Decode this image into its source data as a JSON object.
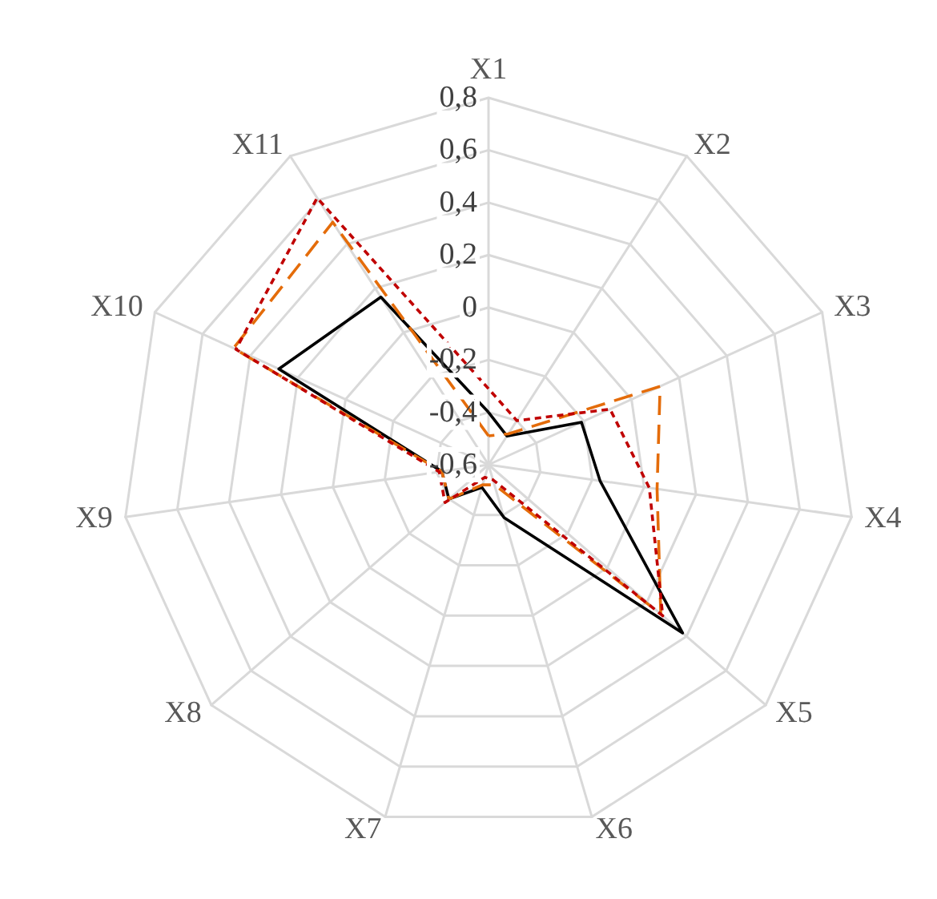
{
  "chart_data": {
    "type": "radar",
    "categories": [
      "X1",
      "X2",
      "X3",
      "X4",
      "X5",
      "X6",
      "X7",
      "X8",
      "X9",
      "X10",
      "X11"
    ],
    "ylim": [
      -0.6,
      0.8
    ],
    "yticks": [
      {
        "value": -0.6,
        "label": "-0,6"
      },
      {
        "value": -0.4,
        "label": "-0,4"
      },
      {
        "value": -0.2,
        "label": "-0,2"
      },
      0,
      {
        "value": 0.2,
        "label": "0,2"
      },
      {
        "value": 0.4,
        "label": "0,4"
      },
      {
        "value": 0.6,
        "label": "0,6"
      },
      {
        "value": 0.8,
        "label": "0,8"
      }
    ],
    "grid": true,
    "marker": "none",
    "series": [
      {
        "color": "#000000",
        "line_style": "solid",
        "values": [
          -0.4,
          -0.47,
          -0.21,
          -0.17,
          0.38,
          -0.39,
          -0.51,
          -0.4,
          -0.42,
          0.28,
          0.16
        ]
      },
      {
        "color": "#e46c0a",
        "line_style": "dashed",
        "values": [
          -0.49,
          -0.46,
          0.12,
          0.05,
          0.27,
          -0.52,
          -0.52,
          -0.4,
          -0.42,
          0.47,
          0.5
        ]
      },
      {
        "color": "#c00000",
        "line_style": "dotted",
        "values": [
          -0.31,
          -0.4,
          -0.09,
          0.02,
          0.28,
          -0.54,
          -0.55,
          -0.38,
          -0.41,
          0.46,
          0.61
        ]
      }
    ]
  }
}
